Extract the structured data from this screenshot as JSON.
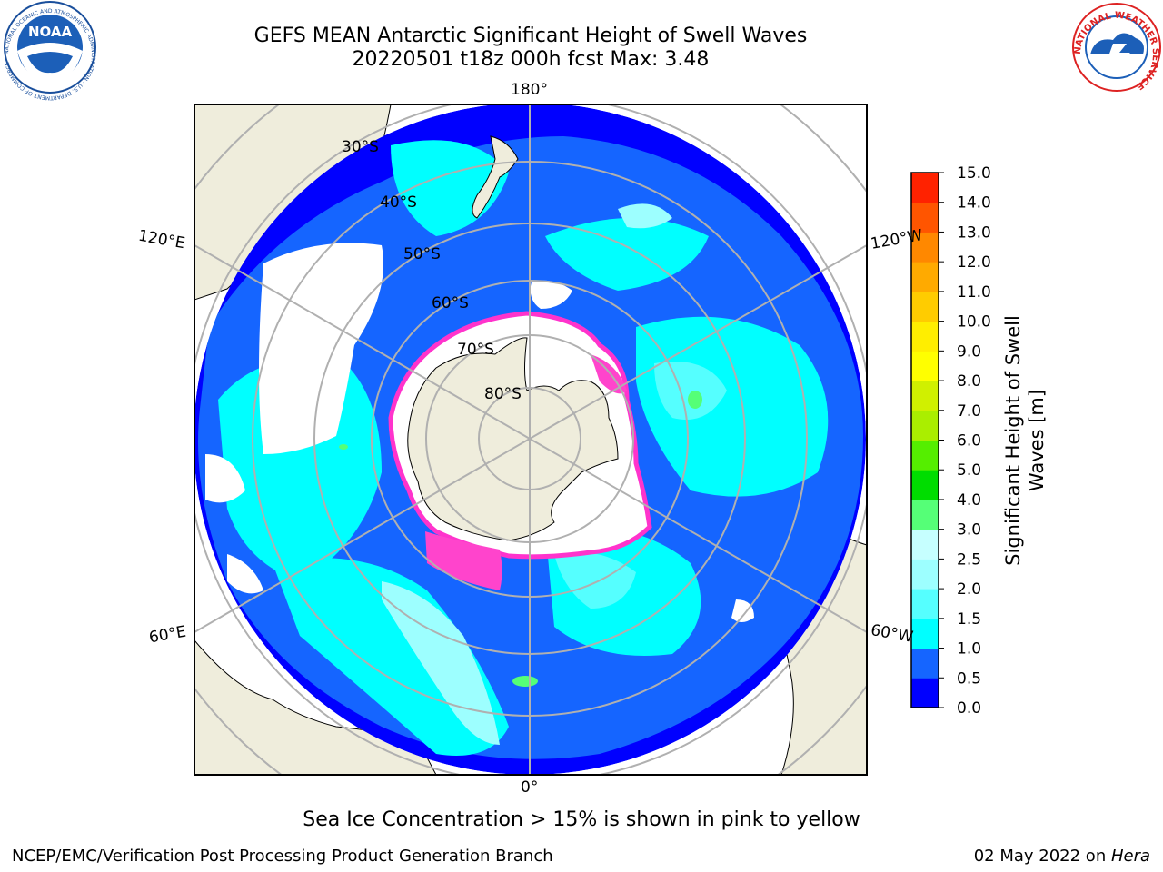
{
  "header": {
    "title_line1": "GEFS MEAN Antarctic Significant Height of Swell Waves",
    "title_line2": "20220501 t18z 000h fcst   Max: 3.48"
  },
  "logos": {
    "left": {
      "name": "noaa-logo",
      "text": "NOAA",
      "ring_text": "NATIONAL OCEANIC AND ATMOSPHERIC ADMINISTRATION · U.S. DEPARTMENT OF COMMERCE"
    },
    "right": {
      "name": "nws-logo",
      "ring_text": "NATIONAL WEATHER SERVICE"
    }
  },
  "map": {
    "projection": "south-polar-stereographic",
    "longitude_labels": [
      "180°",
      "120°E",
      "120°W",
      "60°E",
      "60°W",
      "0°"
    ],
    "latitude_labels": [
      "30°S",
      "40°S",
      "50°S",
      "60°S",
      "70°S",
      "80°S"
    ]
  },
  "colorbar": {
    "label": "Significant Height of Swell Waves [m]",
    "levels": [
      "0.0",
      "0.5",
      "1.0",
      "1.5",
      "2.0",
      "2.5",
      "3.0",
      "4.0",
      "5.0",
      "6.0",
      "7.0",
      "8.0",
      "9.0",
      "10.0",
      "11.0",
      "12.0",
      "13.0",
      "14.0",
      "15.0"
    ],
    "colors": [
      "#0000ff",
      "#1565ff",
      "#00ffff",
      "#55ffff",
      "#9dffff",
      "#c6ffff",
      "#55ff77",
      "#00dd00",
      "#55ee00",
      "#aaee00",
      "#d0f000",
      "#ffff00",
      "#ffee00",
      "#ffcc00",
      "#ffaa00",
      "#ff8800",
      "#ff5500",
      "#ff2200"
    ]
  },
  "caption": "Sea Ice Concentration > 15% is shown in pink to yellow",
  "footer": {
    "left": "NCEP/EMC/Verification Post Processing Product Generation Branch",
    "right_prefix": "02 May 2022 on ",
    "right_machine": "Hera"
  }
}
